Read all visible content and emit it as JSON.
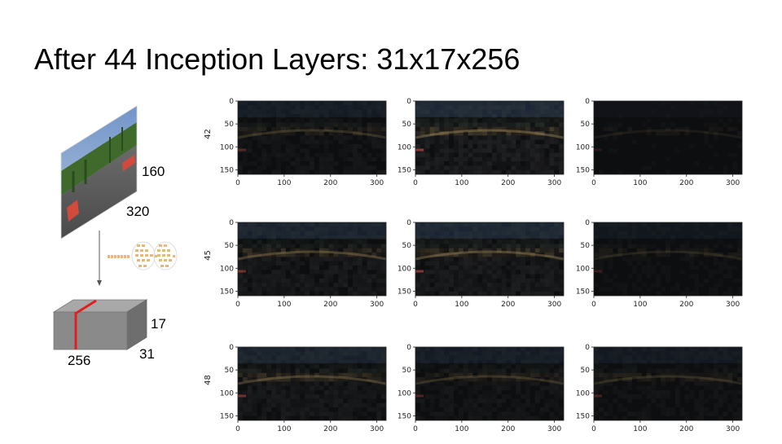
{
  "slide": {
    "title": "After 44 Inception Layers: 31x17x256"
  },
  "input_image": {
    "height_label": "160",
    "width_label": "320"
  },
  "output_tensor": {
    "height_label": "17",
    "width_label": "31",
    "depth_label": "256"
  },
  "feature_grid": {
    "row_labels": [
      "42",
      "45",
      "48"
    ],
    "x_ticks": [
      "0",
      "100",
      "200",
      "300"
    ],
    "y_ticks": [
      "0",
      "50",
      "100",
      "150"
    ],
    "x_tick_values": [
      0,
      100,
      200,
      300
    ],
    "y_tick_values": [
      0,
      50,
      100,
      150
    ],
    "x_max": 320,
    "y_max": 160
  },
  "colors": {
    "cut_line": "#e02020",
    "cube_front": "#8a8a8a",
    "cube_top": "#a8a8a8",
    "cube_side": "#6e6e6e",
    "inception_blocks": "#e8b77a"
  }
}
